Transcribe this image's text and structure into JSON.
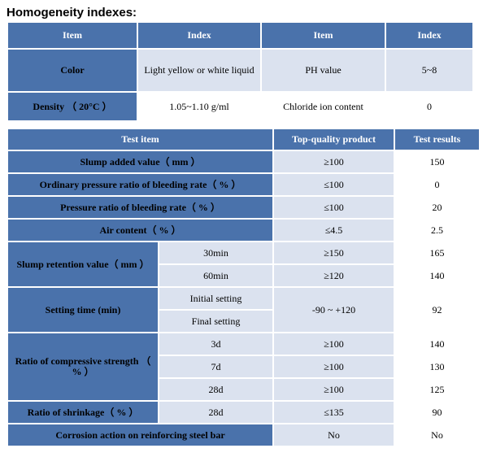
{
  "title": "Homogeneity indexes:",
  "table1": {
    "headers": [
      "Item",
      "Index",
      "Item",
      "Index"
    ],
    "rows": [
      [
        "Color",
        "Light yellow or white liquid",
        "PH value",
        "5~8"
      ],
      [
        "Density （ 20°C ）",
        "1.05~1.10 g/ml",
        "Chloride ion content",
        "0"
      ]
    ]
  },
  "table2": {
    "headers": [
      "Test item",
      "Top-quality product",
      "Test results"
    ],
    "slump_added": {
      "label": "Slump added value（ mm ）",
      "standard": "≥100",
      "result": "150"
    },
    "bleeding_ordinary": {
      "label": "Ordinary pressure ratio of bleeding rate（ % ）",
      "standard": "≤100",
      "result": "0"
    },
    "bleeding_pressure": {
      "label": "Pressure ratio of bleeding rate（ % ）",
      "standard": "≤100",
      "result": "20"
    },
    "air_content": {
      "label": "Air content（ % ）",
      "standard": "≤4.5",
      "result": "2.5"
    },
    "slump_retention": {
      "label": "Slump retention value（ mm ）",
      "rows": [
        {
          "sub": "30min",
          "standard": "≥150",
          "result": "165"
        },
        {
          "sub": "60min",
          "standard": "≥120",
          "result": "140"
        }
      ]
    },
    "setting_time": {
      "label": "Setting time (min)",
      "standard": "-90 ~ +120",
      "result": "92",
      "subs": [
        "Initial setting",
        "Final setting"
      ]
    },
    "compressive": {
      "label": "Ratio of compressive strength （ % ）",
      "rows": [
        {
          "sub": "3d",
          "standard": "≥100",
          "result": "140"
        },
        {
          "sub": "7d",
          "standard": "≥100",
          "result": "130"
        },
        {
          "sub": "28d",
          "standard": "≥100",
          "result": "125"
        }
      ]
    },
    "shrinkage": {
      "label": "Ratio of shrinkage（ % ）",
      "sub": "28d",
      "standard": "≤135",
      "result": "90"
    },
    "corrosion": {
      "label": "Corrosion action on reinforcing steel bar",
      "standard": "No",
      "result": "No"
    }
  }
}
